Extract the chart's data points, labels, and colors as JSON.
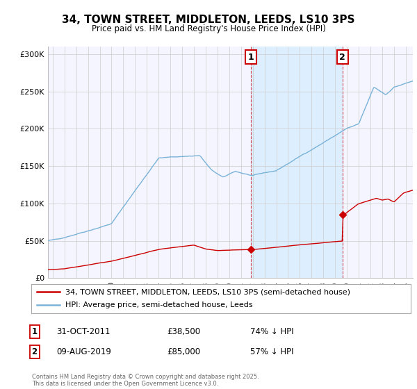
{
  "title": "34, TOWN STREET, MIDDLETON, LEEDS, LS10 3PS",
  "subtitle": "Price paid vs. HM Land Registry's House Price Index (HPI)",
  "ylim": [
    0,
    310000
  ],
  "yticks": [
    0,
    50000,
    100000,
    150000,
    200000,
    250000,
    300000
  ],
  "ytick_labels": [
    "£0",
    "£50K",
    "£100K",
    "£150K",
    "£200K",
    "£250K",
    "£300K"
  ],
  "xlim_start": 1994.6,
  "xlim_end": 2025.6,
  "hpi_color": "#7ab3d8",
  "price_color": "#cc0000",
  "point1_date": 2011.83,
  "point1_price": 38500,
  "point2_date": 2019.62,
  "point2_price": 85000,
  "shade_color": "#ddeeff",
  "background_color": "#ffffff",
  "plot_bg_color": "#f5f5ff",
  "legend_line1": "34, TOWN STREET, MIDDLETON, LEEDS, LS10 3PS (semi-detached house)",
  "legend_line2": "HPI: Average price, semi-detached house, Leeds",
  "footer_text": "Contains HM Land Registry data © Crown copyright and database right 2025.\nThis data is licensed under the Open Government Licence v3.0.",
  "grid_color": "#cccccc",
  "row1_num": "1",
  "row1_date": "31-OCT-2011",
  "row1_price": "£38,500",
  "row1_hpi": "74% ↓ HPI",
  "row2_num": "2",
  "row2_date": "09-AUG-2019",
  "row2_price": "£85,000",
  "row2_hpi": "57% ↓ HPI"
}
